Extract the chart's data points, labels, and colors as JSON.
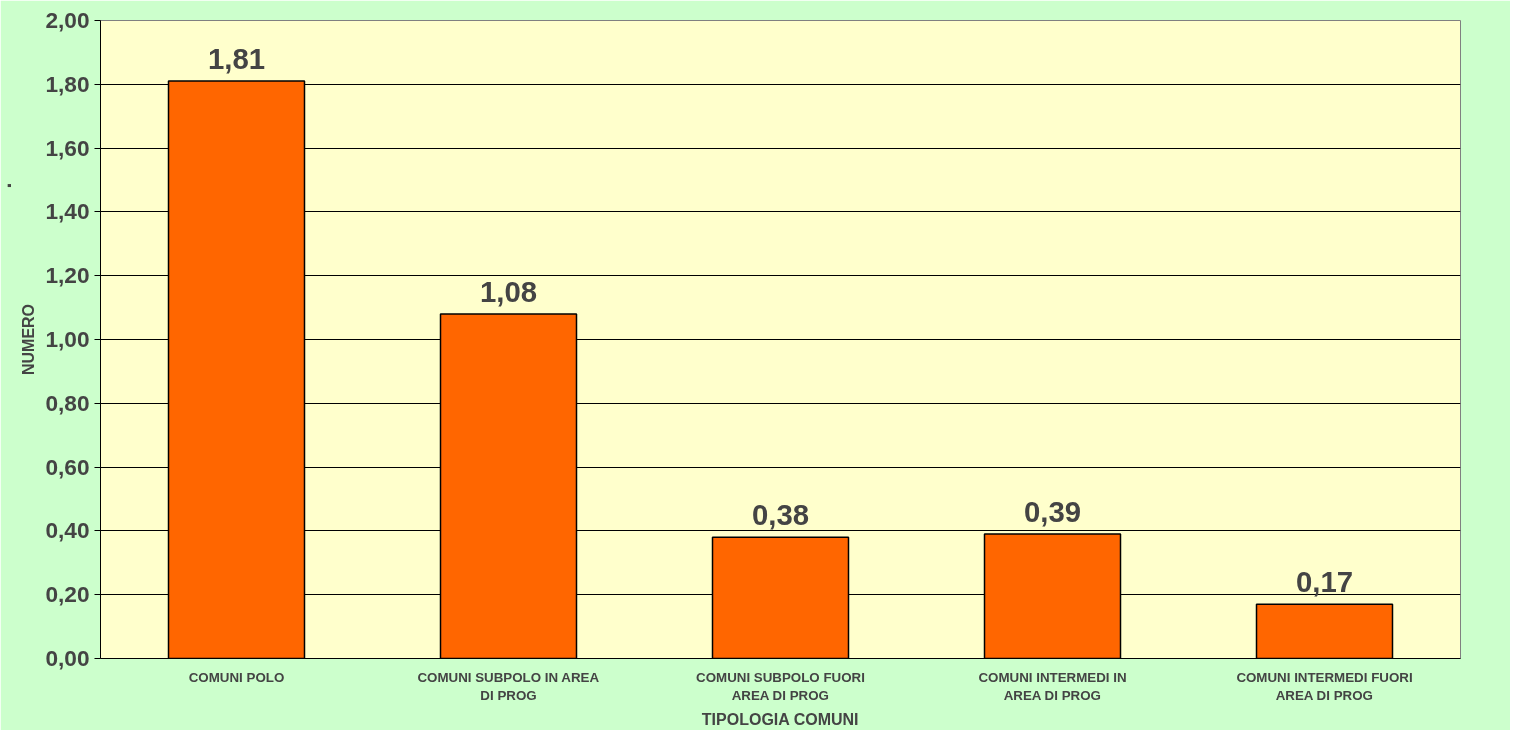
{
  "chart_data": {
    "type": "bar",
    "xlabel": "TIPOLOGIA COMUNI",
    "ylabel": "NUMERO",
    "annotations": [
      "."
    ],
    "categories": [
      "COMUNI POLO",
      "COMUNI SUBPOLO IN AREA DI PROG",
      "COMUNI SUBPOLO FUORI AREA DI PROG",
      "COMUNI INTERMEDI IN AREA DI PROG",
      "COMUNI INTERMEDI FUORI AREA DI PROG"
    ],
    "values": [
      1.81,
      1.08,
      0.38,
      0.39,
      0.17
    ],
    "value_labels": [
      "1,81",
      "1,08",
      "0,38",
      "0,39",
      "0,17"
    ],
    "color": "#ff6600",
    "ylim": [
      0,
      2
    ],
    "yticks": [
      {
        "value": 0,
        "label": "0,00"
      },
      {
        "value": 0.2,
        "label": "0,20"
      },
      {
        "value": 0.4,
        "label": "0,40"
      },
      {
        "value": 0.6,
        "label": "0,60"
      },
      {
        "value": 0.8,
        "label": "0,80"
      },
      {
        "value": 1.0,
        "label": "1,00"
      },
      {
        "value": 1.2,
        "label": "1,20"
      },
      {
        "value": 1.4,
        "label": "1,40"
      },
      {
        "value": 1.6,
        "label": "1,60"
      },
      {
        "value": 1.8,
        "label": "1,80"
      },
      {
        "value": 2.0,
        "label": "2,00"
      }
    ],
    "grid": "y"
  }
}
